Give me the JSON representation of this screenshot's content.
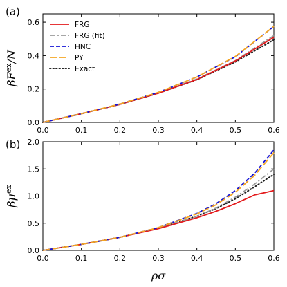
{
  "colors": {
    "FRG": "#e31a1c",
    "FRG (fit)": "#999999",
    "HNC": "#1414d6",
    "PY": "#f5a623",
    "Exact": "#222222"
  },
  "legend": [
    "FRG",
    "FRG (fit)",
    "HNC",
    "PY",
    "Exact"
  ],
  "chart_data": [
    {
      "type": "line",
      "panel_label": "(a)",
      "xlabel": "",
      "ylabel": "βF^ex/N",
      "ylabel_parts": {
        "main": "βF",
        "sup": "ex",
        "tail": "/N"
      },
      "xlim": [
        0.0,
        0.6
      ],
      "ylim": [
        0.0,
        0.65
      ],
      "xticks": [
        "0.0",
        "0.1",
        "0.2",
        "0.3",
        "0.4",
        "0.5",
        "0.6"
      ],
      "yticks": [
        "0.0",
        "0.2",
        "0.4",
        "0.6"
      ],
      "x": [
        0.0,
        0.1,
        0.2,
        0.3,
        0.4,
        0.5,
        0.6
      ],
      "legend_position": "top-left",
      "series": [
        {
          "name": "FRG",
          "values": [
            0.0,
            0.052,
            0.108,
            0.175,
            0.257,
            0.368,
            0.51
          ]
        },
        {
          "name": "FRG (fit)",
          "values": [
            0.0,
            0.052,
            0.109,
            0.176,
            0.26,
            0.37,
            0.52
          ]
        },
        {
          "name": "HNC",
          "values": [
            0.0,
            0.052,
            0.11,
            0.18,
            0.272,
            0.393,
            0.575
          ]
        },
        {
          "name": "PY",
          "values": [
            0.0,
            0.052,
            0.11,
            0.18,
            0.272,
            0.395,
            0.575
          ]
        },
        {
          "name": "Exact",
          "values": [
            0.0,
            0.052,
            0.108,
            0.175,
            0.256,
            0.362,
            0.495
          ]
        }
      ]
    },
    {
      "type": "line",
      "panel_label": "(b)",
      "xlabel": "ρσ",
      "ylabel": "βμ^ex",
      "ylabel_parts": {
        "main": "βμ",
        "sup": "ex",
        "tail": ""
      },
      "xlim": [
        0.0,
        0.6
      ],
      "ylim": [
        0.0,
        2.0
      ],
      "xticks": [
        "0.0",
        "0.1",
        "0.2",
        "0.3",
        "0.4",
        "0.5",
        "0.6"
      ],
      "yticks": [
        "0.0",
        "0.5",
        "1.0",
        "1.5",
        "2.0"
      ],
      "x": [
        0.0,
        0.1,
        0.2,
        0.3,
        0.4,
        0.45,
        0.5,
        0.55,
        0.6
      ],
      "series": [
        {
          "name": "FRG",
          "values": [
            0.0,
            0.11,
            0.24,
            0.4,
            0.6,
            0.72,
            0.86,
            1.02,
            1.1
          ]
        },
        {
          "name": "FRG (fit)",
          "values": [
            0.0,
            0.11,
            0.24,
            0.41,
            0.63,
            0.78,
            0.98,
            1.22,
            1.5
          ]
        },
        {
          "name": "HNC",
          "values": [
            0.0,
            0.11,
            0.24,
            0.42,
            0.68,
            0.86,
            1.1,
            1.42,
            1.85
          ]
        },
        {
          "name": "PY",
          "values": [
            0.0,
            0.11,
            0.24,
            0.42,
            0.67,
            0.84,
            1.07,
            1.38,
            1.8
          ]
        },
        {
          "name": "Exact",
          "values": [
            0.0,
            0.11,
            0.24,
            0.41,
            0.63,
            0.77,
            0.95,
            1.17,
            1.4
          ]
        }
      ]
    }
  ]
}
